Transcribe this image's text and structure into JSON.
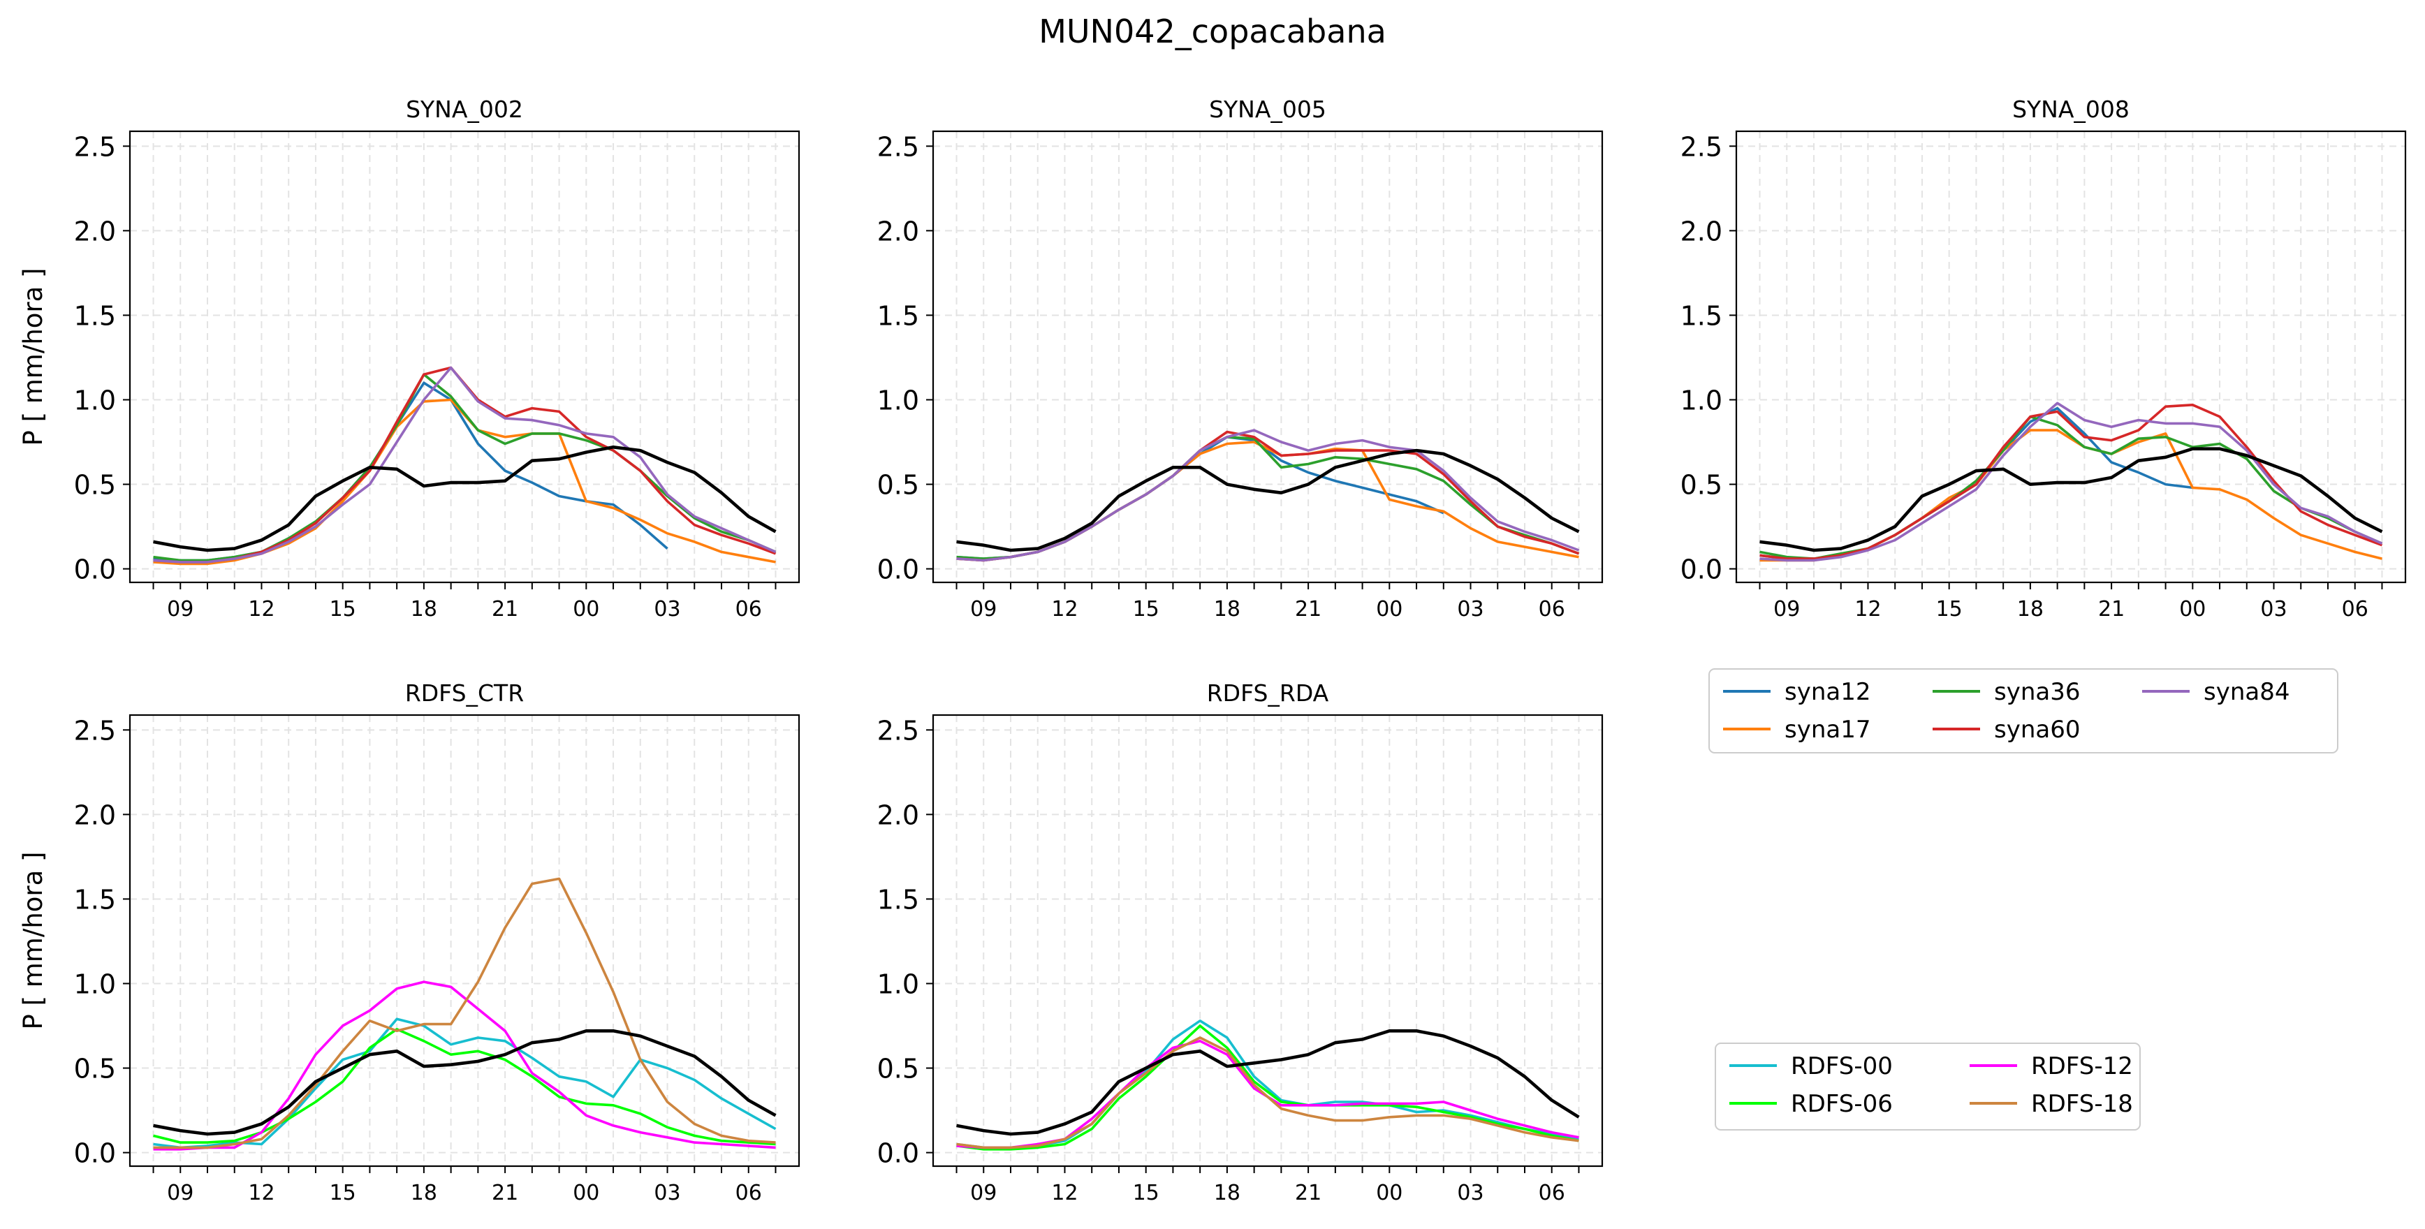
{
  "figure": {
    "suptitle": "MUN042_copacabana"
  },
  "chart_data": [
    {
      "type": "line",
      "title": "SYNA_002",
      "ylabel": "P [ mm/hora ]",
      "ylim": [
        0,
        2.5
      ],
      "yticks": [
        "0.0",
        "0.5",
        "1.0",
        "1.5",
        "2.0",
        "2.5"
      ],
      "x": [
        "08",
        "09",
        "10",
        "11",
        "12",
        "13",
        "14",
        "15",
        "16",
        "17",
        "18",
        "19",
        "20",
        "21",
        "22",
        "23",
        "00",
        "01",
        "02",
        "03",
        "04",
        "05",
        "06",
        "07"
      ],
      "xticks": [
        "09",
        "12",
        "15",
        "18",
        "21",
        "00",
        "03",
        "06"
      ],
      "grid": true,
      "series": [
        {
          "name": "syna12",
          "color": "#1f77b4",
          "values": [
            0.06,
            0.05,
            0.05,
            0.07,
            0.1,
            0.18,
            0.27,
            0.42,
            0.6,
            0.85,
            1.1,
            1.0,
            0.74,
            0.58,
            0.51,
            0.43,
            0.4,
            0.38,
            0.26,
            0.12,
            null,
            null,
            null,
            null
          ]
        },
        {
          "name": "syna17",
          "color": "#ff7f0e",
          "values": [
            0.04,
            0.03,
            0.03,
            0.05,
            0.09,
            0.15,
            0.24,
            0.4,
            0.58,
            0.84,
            0.99,
            1.0,
            0.82,
            0.78,
            0.8,
            0.8,
            0.4,
            0.36,
            0.29,
            0.21,
            0.16,
            0.1,
            0.07,
            0.04
          ]
        },
        {
          "name": "syna36",
          "color": "#2ca02c",
          "values": [
            0.07,
            0.05,
            0.05,
            0.07,
            0.1,
            0.18,
            0.28,
            0.42,
            0.6,
            0.85,
            1.15,
            1.02,
            0.82,
            0.74,
            0.8,
            0.8,
            0.76,
            0.7,
            0.58,
            0.43,
            0.3,
            0.22,
            0.17,
            0.1
          ]
        },
        {
          "name": "syna60",
          "color": "#d62728",
          "values": [
            0.05,
            0.04,
            0.04,
            0.06,
            0.1,
            0.17,
            0.27,
            0.42,
            0.58,
            0.87,
            1.15,
            1.19,
            1.0,
            0.9,
            0.95,
            0.93,
            0.78,
            0.7,
            0.58,
            0.4,
            0.26,
            0.2,
            0.15,
            0.09
          ]
        },
        {
          "name": "syna84",
          "color": "#9467bd",
          "values": [
            0.05,
            0.04,
            0.04,
            0.06,
            0.09,
            0.16,
            0.25,
            0.38,
            0.5,
            0.75,
            1.0,
            1.19,
            0.99,
            0.89,
            0.88,
            0.85,
            0.8,
            0.78,
            0.66,
            0.44,
            0.31,
            0.24,
            0.17,
            0.1
          ]
        },
        {
          "name": "",
          "color": "#000000",
          "values": [
            0.16,
            0.13,
            0.11,
            0.12,
            0.17,
            0.26,
            0.43,
            0.52,
            0.6,
            0.59,
            0.49,
            0.51,
            0.51,
            0.52,
            0.64,
            0.65,
            0.69,
            0.72,
            0.7,
            0.63,
            0.57,
            0.45,
            0.31,
            0.22
          ]
        }
      ]
    },
    {
      "type": "line",
      "title": "SYNA_005",
      "ylabel": "",
      "ylim": [
        0,
        2.5
      ],
      "yticks": [
        "0.0",
        "0.5",
        "1.0",
        "1.5",
        "2.0",
        "2.5"
      ],
      "x": [
        "08",
        "09",
        "10",
        "11",
        "12",
        "13",
        "14",
        "15",
        "16",
        "17",
        "18",
        "19",
        "20",
        "21",
        "22",
        "23",
        "00",
        "01",
        "02",
        "03",
        "04",
        "05",
        "06",
        "07"
      ],
      "xticks": [
        "09",
        "12",
        "15",
        "18",
        "21",
        "00",
        "03",
        "06"
      ],
      "grid": true,
      "series": [
        {
          "name": "syna12",
          "color": "#1f77b4",
          "values": [
            0.07,
            0.06,
            0.07,
            0.1,
            0.16,
            0.25,
            0.35,
            0.44,
            0.55,
            0.68,
            0.78,
            0.76,
            0.64,
            0.57,
            0.52,
            0.48,
            0.44,
            0.4,
            0.33,
            null,
            null,
            null,
            null,
            null
          ]
        },
        {
          "name": "syna17",
          "color": "#ff7f0e",
          "values": [
            0.06,
            0.05,
            0.07,
            0.1,
            0.16,
            0.25,
            0.35,
            0.44,
            0.55,
            0.68,
            0.74,
            0.75,
            0.67,
            0.68,
            0.71,
            0.7,
            0.41,
            0.37,
            0.34,
            0.24,
            0.16,
            0.13,
            0.1,
            0.07
          ]
        },
        {
          "name": "syna36",
          "color": "#2ca02c",
          "values": [
            0.07,
            0.06,
            0.07,
            0.1,
            0.16,
            0.25,
            0.35,
            0.44,
            0.55,
            0.7,
            0.78,
            0.77,
            0.6,
            0.62,
            0.66,
            0.65,
            0.62,
            0.59,
            0.52,
            0.38,
            0.25,
            0.2,
            0.15,
            0.09
          ]
        },
        {
          "name": "syna60",
          "color": "#d62728",
          "values": [
            0.06,
            0.05,
            0.07,
            0.1,
            0.16,
            0.25,
            0.35,
            0.44,
            0.55,
            0.7,
            0.81,
            0.78,
            0.67,
            0.68,
            0.7,
            0.7,
            0.7,
            0.68,
            0.56,
            0.4,
            0.25,
            0.19,
            0.15,
            0.09
          ]
        },
        {
          "name": "syna84",
          "color": "#9467bd",
          "values": [
            0.06,
            0.05,
            0.07,
            0.1,
            0.16,
            0.25,
            0.35,
            0.44,
            0.55,
            0.7,
            0.78,
            0.82,
            0.75,
            0.7,
            0.74,
            0.76,
            0.72,
            0.7,
            0.58,
            0.42,
            0.28,
            0.22,
            0.17,
            0.11
          ]
        },
        {
          "name": "",
          "color": "#000000",
          "values": [
            0.16,
            0.14,
            0.11,
            0.12,
            0.18,
            0.27,
            0.43,
            0.52,
            0.6,
            0.6,
            0.5,
            0.47,
            0.45,
            0.5,
            0.6,
            0.64,
            0.68,
            0.7,
            0.68,
            0.61,
            0.53,
            0.42,
            0.3,
            0.22
          ]
        }
      ]
    },
    {
      "type": "line",
      "title": "SYNA_008",
      "ylabel": "",
      "ylim": [
        0,
        2.5
      ],
      "yticks": [
        "0.0",
        "0.5",
        "1.0",
        "1.5",
        "2.0",
        "2.5"
      ],
      "x": [
        "08",
        "09",
        "10",
        "11",
        "12",
        "13",
        "14",
        "15",
        "16",
        "17",
        "18",
        "19",
        "20",
        "21",
        "22",
        "23",
        "00",
        "01",
        "02",
        "03",
        "04",
        "05",
        "06",
        "07"
      ],
      "xticks": [
        "09",
        "12",
        "15",
        "18",
        "21",
        "00",
        "03",
        "06"
      ],
      "grid": true,
      "series": [
        {
          "name": "syna12",
          "color": "#1f77b4",
          "values": [
            0.08,
            0.06,
            0.06,
            0.08,
            0.12,
            0.2,
            0.3,
            0.4,
            0.5,
            0.7,
            0.87,
            0.95,
            0.8,
            0.63,
            0.57,
            0.5,
            0.48,
            null,
            null,
            null,
            null,
            null,
            null,
            null
          ]
        },
        {
          "name": "syna17",
          "color": "#ff7f0e",
          "values": [
            0.05,
            0.05,
            0.05,
            0.08,
            0.12,
            0.2,
            0.3,
            0.42,
            0.5,
            0.7,
            0.82,
            0.82,
            0.72,
            0.68,
            0.75,
            0.8,
            0.48,
            0.47,
            0.41,
            0.3,
            0.2,
            0.15,
            0.1,
            0.06
          ]
        },
        {
          "name": "syna36",
          "color": "#2ca02c",
          "values": [
            0.1,
            0.07,
            0.06,
            0.09,
            0.12,
            0.2,
            0.3,
            0.4,
            0.52,
            0.7,
            0.9,
            0.85,
            0.72,
            0.68,
            0.77,
            0.78,
            0.72,
            0.74,
            0.65,
            0.46,
            0.36,
            0.3,
            0.22,
            0.15
          ]
        },
        {
          "name": "syna60",
          "color": "#d62728",
          "values": [
            0.08,
            0.06,
            0.06,
            0.08,
            0.12,
            0.2,
            0.3,
            0.4,
            0.5,
            0.72,
            0.9,
            0.93,
            0.78,
            0.76,
            0.82,
            0.96,
            0.97,
            0.9,
            0.72,
            0.52,
            0.34,
            0.26,
            0.2,
            0.14
          ]
        },
        {
          "name": "syna84",
          "color": "#9467bd",
          "values": [
            0.06,
            0.05,
            0.05,
            0.07,
            0.11,
            0.17,
            0.27,
            0.37,
            0.47,
            0.67,
            0.84,
            0.98,
            0.88,
            0.84,
            0.88,
            0.86,
            0.86,
            0.84,
            0.7,
            0.5,
            0.36,
            0.31,
            0.22,
            0.15
          ]
        },
        {
          "name": "",
          "color": "#000000",
          "values": [
            0.16,
            0.14,
            0.11,
            0.12,
            0.17,
            0.25,
            0.43,
            0.5,
            0.58,
            0.59,
            0.5,
            0.51,
            0.51,
            0.54,
            0.64,
            0.66,
            0.71,
            0.71,
            0.67,
            0.61,
            0.55,
            0.43,
            0.3,
            0.22
          ]
        }
      ]
    },
    {
      "type": "line",
      "title": "RDFS_CTR",
      "ylabel": "P [ mm/hora ]",
      "ylim": [
        0,
        2.5
      ],
      "yticks": [
        "0.0",
        "0.5",
        "1.0",
        "1.5",
        "2.0",
        "2.5"
      ],
      "x": [
        "08",
        "09",
        "10",
        "11",
        "12",
        "13",
        "14",
        "15",
        "16",
        "17",
        "18",
        "19",
        "20",
        "21",
        "22",
        "23",
        "00",
        "01",
        "02",
        "03",
        "04",
        "05",
        "06",
        "07"
      ],
      "xticks": [
        "09",
        "12",
        "15",
        "18",
        "21",
        "00",
        "03",
        "06"
      ],
      "grid": true,
      "series": [
        {
          "name": "RDFS-00",
          "color": "#17becf",
          "values": [
            0.05,
            0.03,
            0.04,
            0.06,
            0.05,
            0.2,
            0.38,
            0.55,
            0.6,
            0.79,
            0.75,
            0.64,
            0.68,
            0.66,
            0.56,
            0.45,
            0.42,
            0.33,
            0.55,
            0.5,
            0.43,
            0.32,
            0.23,
            0.14
          ]
        },
        {
          "name": "RDFS-06",
          "color": "#00ff00",
          "values": [
            0.1,
            0.06,
            0.06,
            0.07,
            0.12,
            0.2,
            0.3,
            0.42,
            0.62,
            0.73,
            0.66,
            0.58,
            0.6,
            0.55,
            0.45,
            0.33,
            0.29,
            0.28,
            0.23,
            0.15,
            0.1,
            0.07,
            0.06,
            0.05
          ]
        },
        {
          "name": "RDFS-12",
          "color": "#ff00ff",
          "values": [
            0.02,
            0.02,
            0.03,
            0.03,
            0.12,
            0.32,
            0.58,
            0.75,
            0.84,
            0.97,
            1.01,
            0.98,
            0.85,
            0.72,
            0.47,
            0.36,
            0.22,
            0.16,
            0.12,
            0.09,
            0.06,
            0.05,
            0.04,
            0.03
          ]
        },
        {
          "name": "RDFS-18",
          "color": "#cd853f",
          "values": [
            0.03,
            0.03,
            0.03,
            0.05,
            0.08,
            0.22,
            0.4,
            0.6,
            0.78,
            0.72,
            0.76,
            0.76,
            1.01,
            1.33,
            1.59,
            1.62,
            1.3,
            0.95,
            0.55,
            0.3,
            0.17,
            0.1,
            0.07,
            0.06
          ]
        },
        {
          "name": "",
          "color": "#000000",
          "values": [
            0.16,
            0.13,
            0.11,
            0.12,
            0.17,
            0.27,
            0.42,
            0.5,
            0.58,
            0.6,
            0.51,
            0.52,
            0.54,
            0.58,
            0.65,
            0.67,
            0.72,
            0.72,
            0.69,
            0.63,
            0.57,
            0.45,
            0.31,
            0.22
          ]
        }
      ]
    },
    {
      "type": "line",
      "title": "RDFS_RDA",
      "ylabel": "",
      "ylim": [
        0,
        2.5
      ],
      "yticks": [
        "0.0",
        "0.5",
        "1.0",
        "1.5",
        "2.0",
        "2.5"
      ],
      "x": [
        "08",
        "09",
        "10",
        "11",
        "12",
        "13",
        "14",
        "15",
        "16",
        "17",
        "18",
        "19",
        "20",
        "21",
        "22",
        "23",
        "00",
        "01",
        "02",
        "03",
        "04",
        "05",
        "06",
        "07"
      ],
      "xticks": [
        "09",
        "12",
        "15",
        "18",
        "21",
        "00",
        "03",
        "06"
      ],
      "grid": true,
      "series": [
        {
          "name": "RDFS-00",
          "color": "#17becf",
          "values": [
            0.05,
            0.03,
            0.03,
            0.04,
            0.07,
            0.17,
            0.35,
            0.48,
            0.67,
            0.78,
            0.68,
            0.45,
            0.31,
            0.28,
            0.3,
            0.3,
            0.28,
            0.24,
            0.25,
            0.22,
            0.18,
            0.14,
            0.11,
            0.08
          ]
        },
        {
          "name": "RDFS-06",
          "color": "#00ff00",
          "values": [
            0.04,
            0.02,
            0.02,
            0.03,
            0.05,
            0.14,
            0.32,
            0.45,
            0.6,
            0.75,
            0.62,
            0.42,
            0.3,
            0.28,
            0.28,
            0.28,
            0.28,
            0.27,
            0.24,
            0.21,
            0.17,
            0.14,
            0.1,
            0.07
          ]
        },
        {
          "name": "RDFS-12",
          "color": "#ff00ff",
          "values": [
            0.04,
            0.03,
            0.03,
            0.05,
            0.08,
            0.2,
            0.35,
            0.5,
            0.62,
            0.66,
            0.58,
            0.38,
            0.28,
            0.28,
            0.28,
            0.29,
            0.29,
            0.29,
            0.3,
            0.25,
            0.2,
            0.16,
            0.12,
            0.09
          ]
        },
        {
          "name": "RDFS-18",
          "color": "#cd853f",
          "values": [
            0.05,
            0.03,
            0.03,
            0.04,
            0.08,
            0.17,
            0.35,
            0.47,
            0.6,
            0.68,
            0.6,
            0.4,
            0.26,
            0.22,
            0.19,
            0.19,
            0.21,
            0.22,
            0.22,
            0.2,
            0.16,
            0.12,
            0.09,
            0.07
          ]
        },
        {
          "name": "",
          "color": "#000000",
          "values": [
            0.16,
            0.13,
            0.11,
            0.12,
            0.17,
            0.24,
            0.42,
            0.5,
            0.58,
            0.6,
            0.51,
            0.53,
            0.55,
            0.58,
            0.65,
            0.67,
            0.72,
            0.72,
            0.69,
            0.63,
            0.56,
            0.45,
            0.31,
            0.21
          ]
        }
      ]
    }
  ],
  "legends": [
    {
      "entries": [
        {
          "label": "syna12",
          "color": "#1f77b4"
        },
        {
          "label": "syna17",
          "color": "#ff7f0e"
        },
        {
          "label": "syna36",
          "color": "#2ca02c"
        },
        {
          "label": "syna60",
          "color": "#d62728"
        },
        {
          "label": "syna84",
          "color": "#9467bd"
        }
      ]
    },
    {
      "entries": [
        {
          "label": "RDFS-00",
          "color": "#17becf"
        },
        {
          "label": "RDFS-06",
          "color": "#00ff00"
        },
        {
          "label": "RDFS-12",
          "color": "#ff00ff"
        },
        {
          "label": "RDFS-18",
          "color": "#cd853f"
        }
      ]
    }
  ]
}
